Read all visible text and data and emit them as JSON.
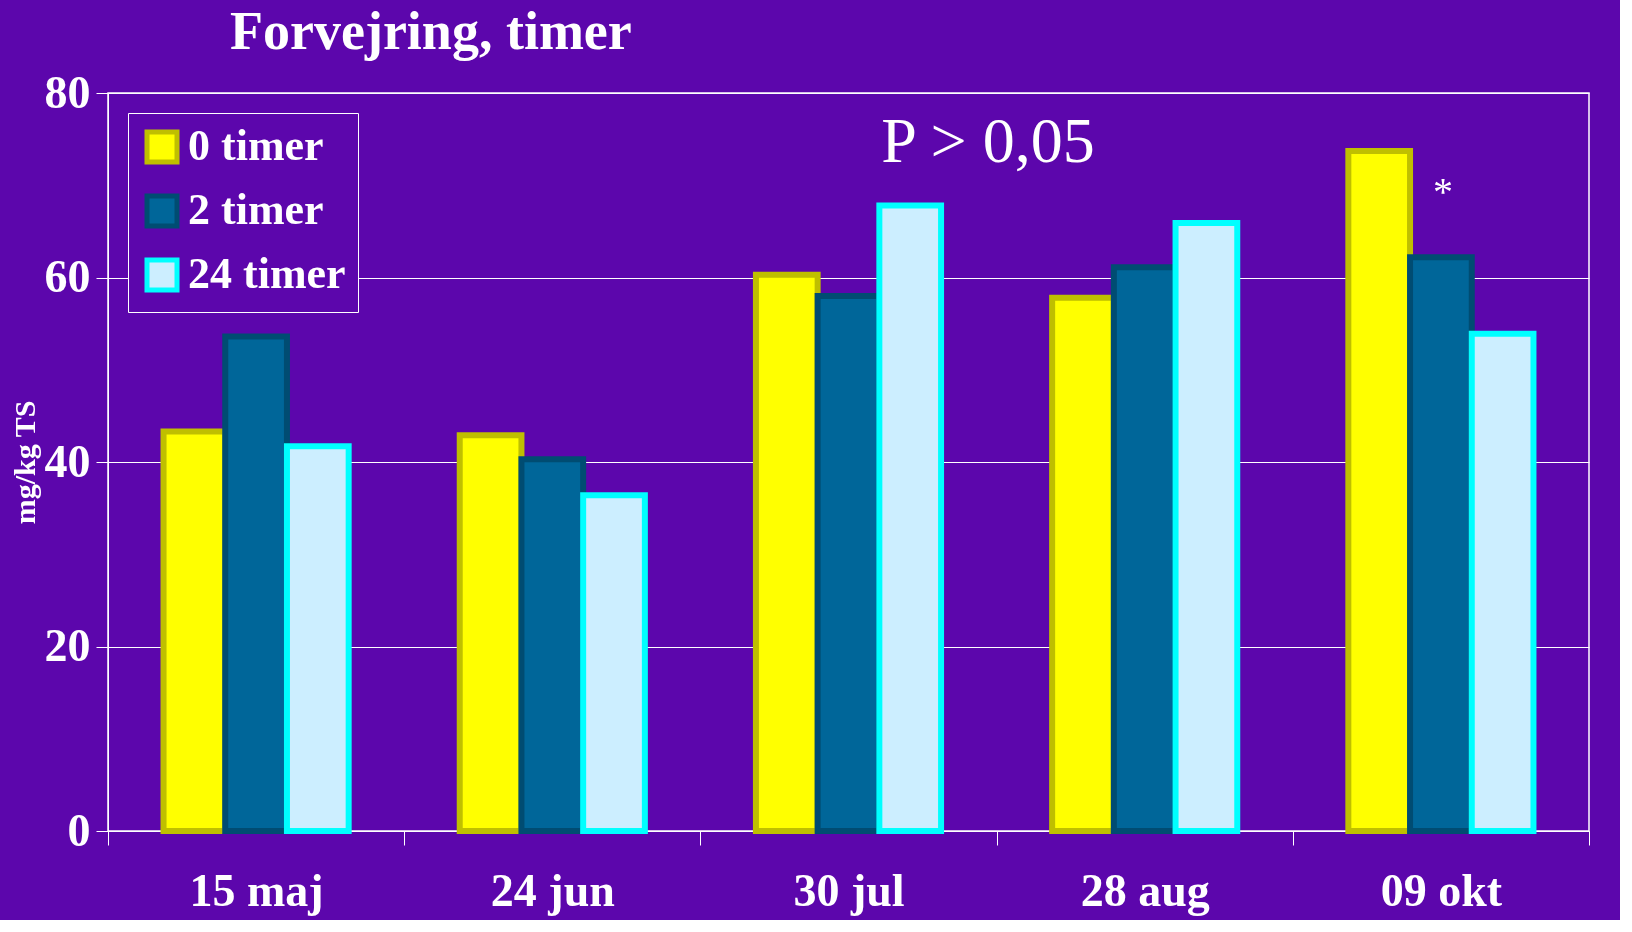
{
  "chart_data": {
    "type": "bar",
    "title": "Forvejring, timer",
    "ylabel": "mg/kg TS",
    "categories": [
      "15 maj",
      "24 jun",
      "30 jul",
      "28 aug",
      "09 okt"
    ],
    "series": [
      {
        "name": "0 timer",
        "color": "#ffff00",
        "values": [
          43.3,
          42.9,
          60.3,
          57.8,
          73.7
        ]
      },
      {
        "name": "2 timer",
        "color": "#006699",
        "values": [
          53.6,
          40.3,
          58.0,
          61.1,
          62.2
        ]
      },
      {
        "name": "24 timer",
        "color": "#cceeff",
        "values": [
          41.7,
          36.4,
          67.8,
          65.9,
          53.9
        ]
      }
    ],
    "ylim": [
      0,
      80
    ],
    "yticks": [
      0,
      20,
      40,
      60,
      80
    ],
    "grid": "y",
    "legend": "top left",
    "annotations": [
      "P > 0,05",
      "*"
    ]
  }
}
